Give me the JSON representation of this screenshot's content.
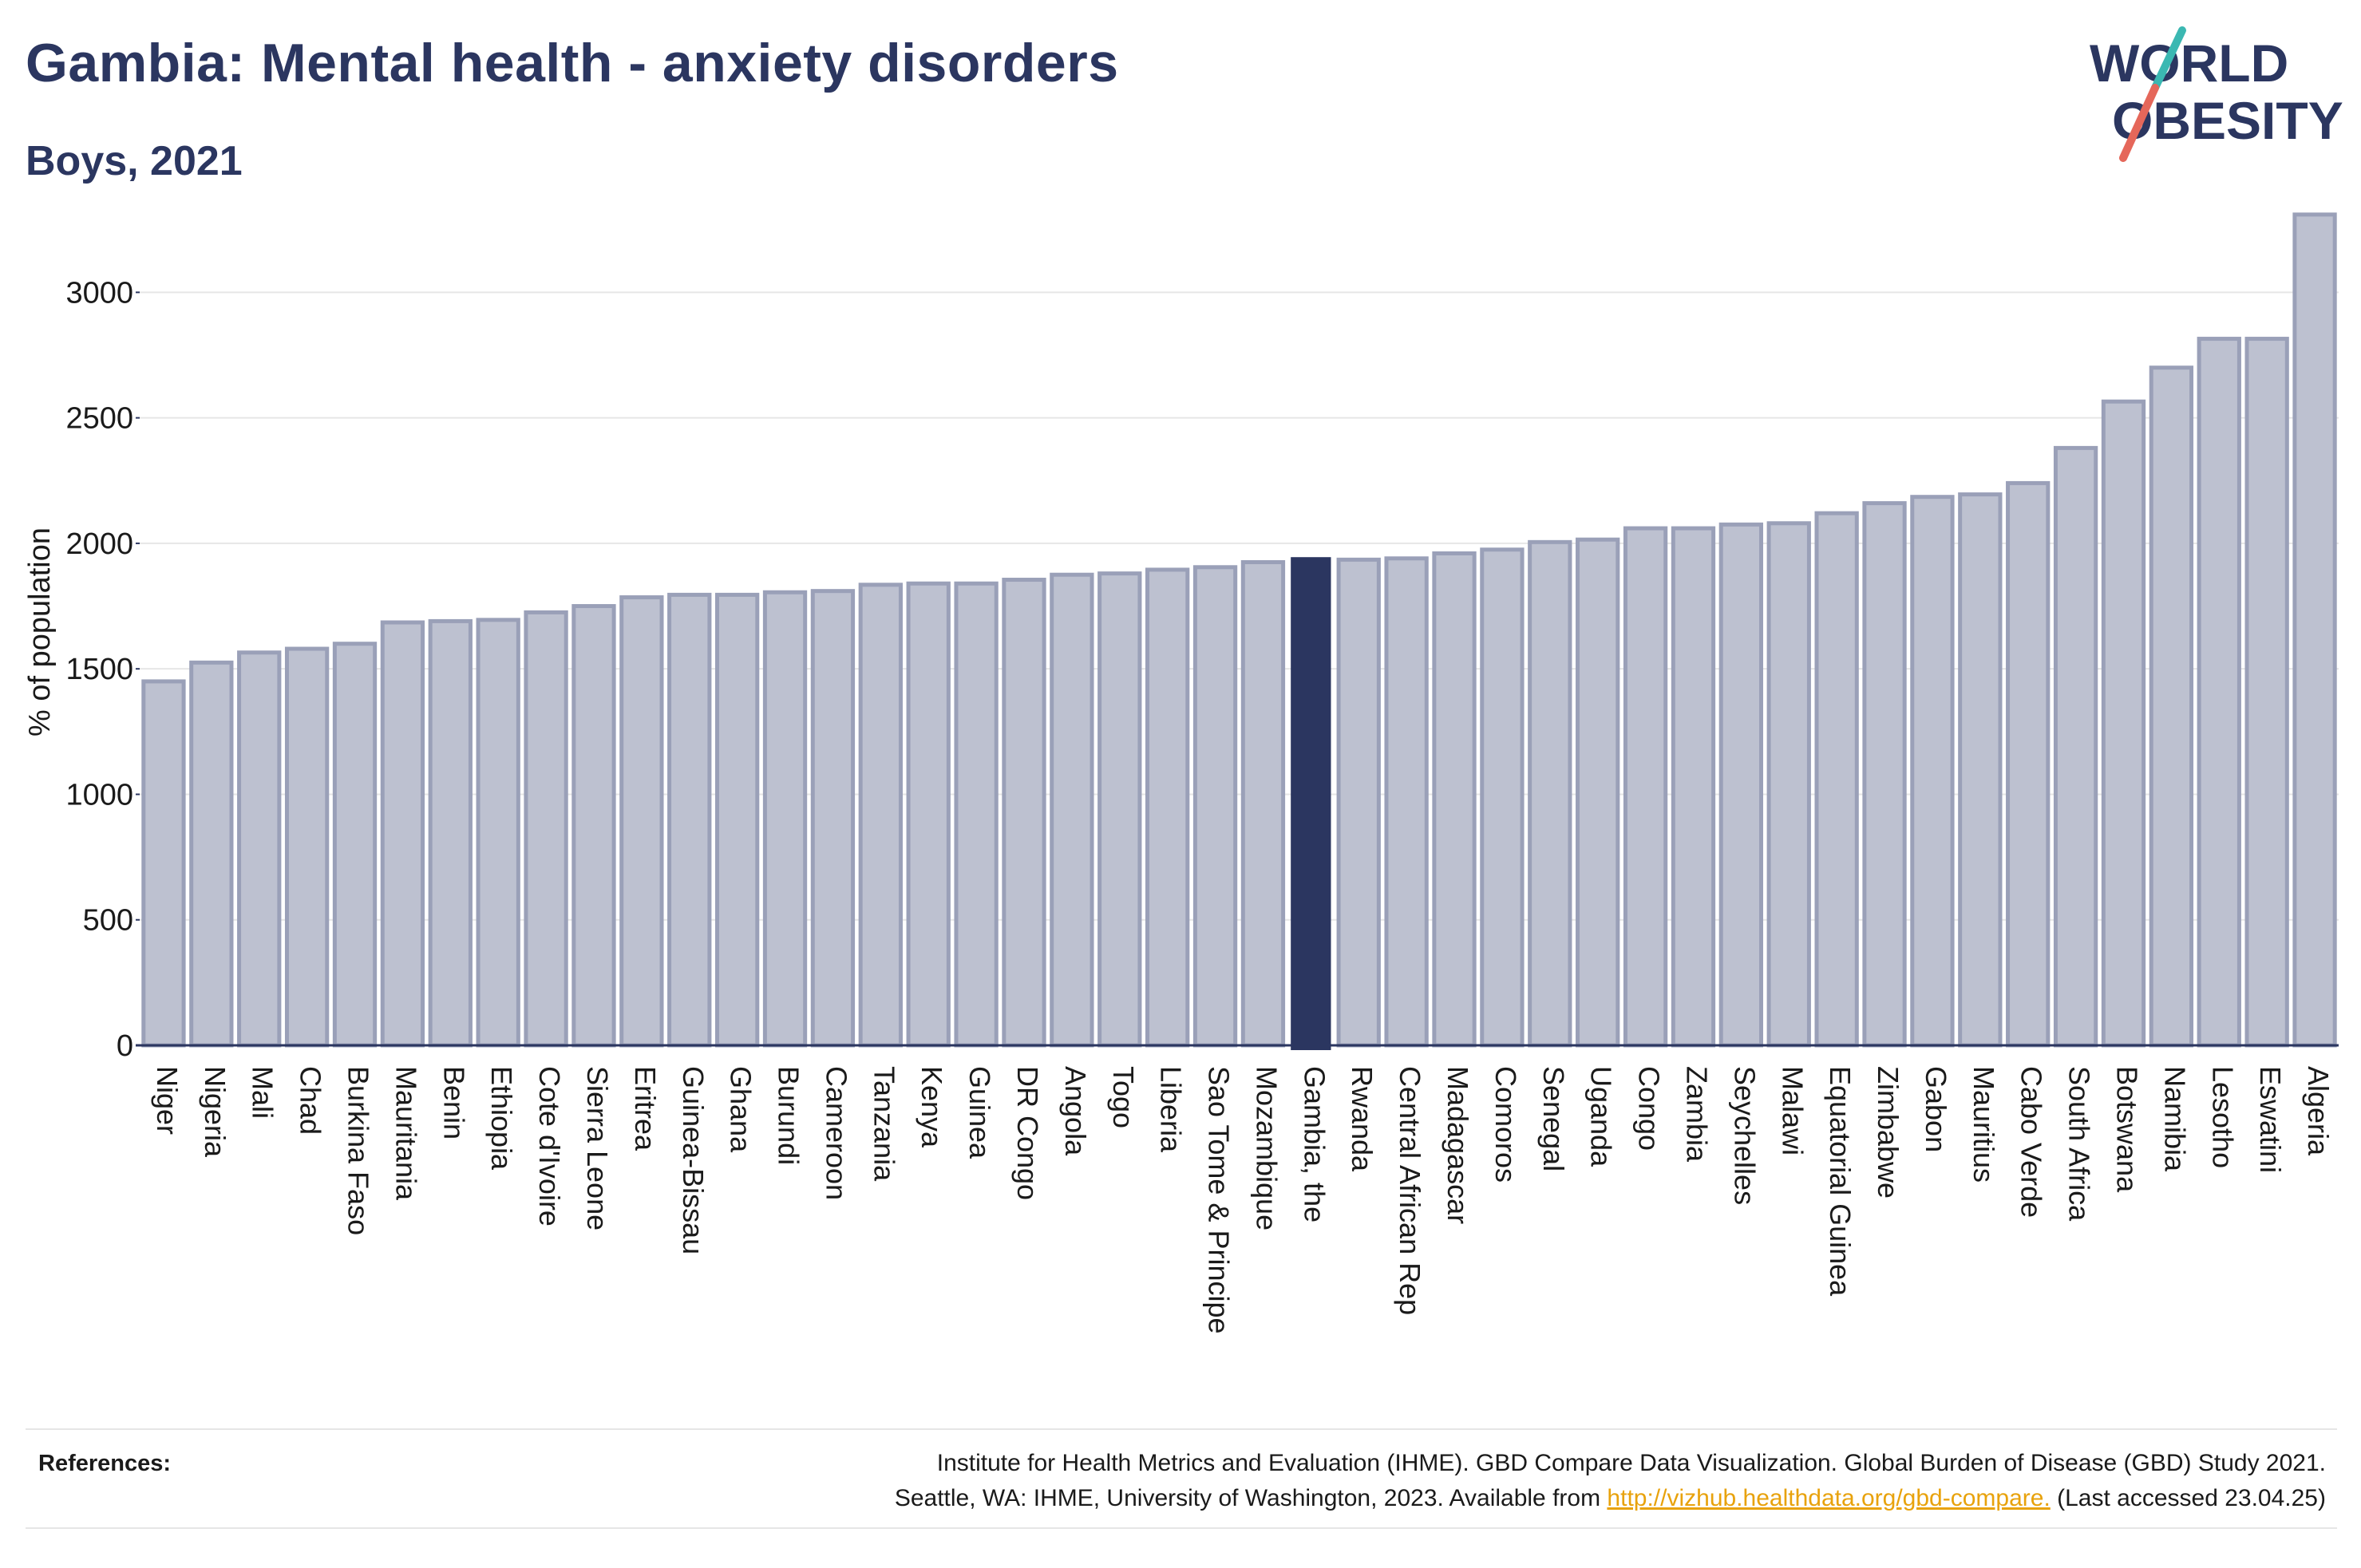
{
  "header": {
    "title": "Gambia: Mental health - anxiety disorders",
    "subtitle": "Boys, 2021"
  },
  "logo": {
    "line1": "WORLD",
    "line2": "OBESITY",
    "icon": "slash-logo-icon",
    "colors": {
      "text": "#2b3660",
      "slash_top": "#3bb8b2",
      "slash_bottom": "#e5675a"
    }
  },
  "chart_data": {
    "type": "bar",
    "ylabel": "% of population",
    "xlabel": "",
    "ylim": [
      0,
      3300
    ],
    "yticks": [
      0,
      500,
      1000,
      1500,
      2000,
      2500,
      3000
    ],
    "grid": true,
    "highlight": "Gambia, the",
    "colors": {
      "bar": "#bdc1d0",
      "bar_border": "#9aa0b8",
      "highlight": "#2b3660",
      "grid": "#e6e6e6",
      "axis": "#2b3660"
    },
    "categories": [
      "Niger",
      "Nigeria",
      "Mali",
      "Chad",
      "Burkina Faso",
      "Mauritania",
      "Benin",
      "Ethiopia",
      "Cote d'Ivoire",
      "Sierra Leone",
      "Eritrea",
      "Guinea-Bissau",
      "Ghana",
      "Burundi",
      "Cameroon",
      "Tanzania",
      "Kenya",
      "Guinea",
      "DR Congo",
      "Angola",
      "Togo",
      "Liberia",
      "Sao Tome & Principe",
      "Mozambique",
      "Gambia, the",
      "Rwanda",
      "Central African Rep",
      "Madagascar",
      "Comoros",
      "Senegal",
      "Uganda",
      "Congo",
      "Zambia",
      "Seychelles",
      "Malawi",
      "Equatorial Guinea",
      "Zimbabwe",
      "Gabon",
      "Mauritius",
      "Cabo Verde",
      "South Africa",
      "Botswana",
      "Namibia",
      "Lesotho",
      "Eswatini",
      "Algeria"
    ],
    "values": [
      1450,
      1525,
      1565,
      1580,
      1600,
      1685,
      1690,
      1695,
      1725,
      1750,
      1785,
      1795,
      1795,
      1805,
      1810,
      1835,
      1840,
      1840,
      1855,
      1875,
      1880,
      1895,
      1905,
      1925,
      1945,
      1935,
      1940,
      1960,
      1975,
      2005,
      2015,
      2060,
      2060,
      2075,
      2080,
      2120,
      2160,
      2185,
      2195,
      2240,
      2380,
      2565,
      2700,
      2815,
      2815,
      3310
    ]
  },
  "references": {
    "label": "References:",
    "line1": "Institute for Health Metrics and Evaluation (IHME). GBD Compare Data Visualization. Global Burden of Disease (GBD) Study 2021.",
    "line2_before": "Seattle, WA: IHME, University of Washington, 2023. Available from ",
    "link": "http://vizhub.healthdata.org/gbd-compare.",
    "line2_after": " (Last accessed 23.04.25)"
  }
}
